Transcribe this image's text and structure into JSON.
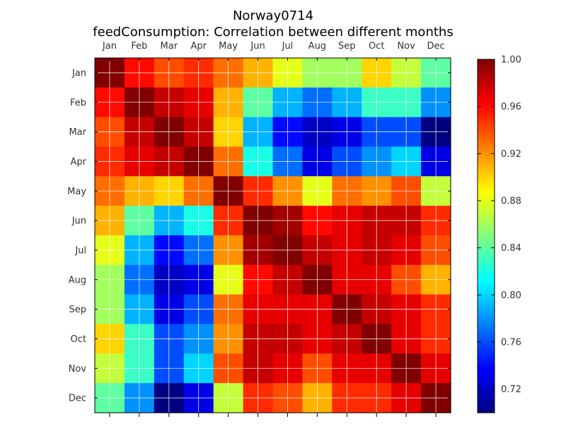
{
  "chart_data": {
    "type": "heatmap",
    "title": "Norway0714",
    "subtitle": "feedConsumption: Correlation between different months",
    "xlabel": "",
    "ylabel": "",
    "x_tick_position": "top",
    "grid": true,
    "categories": [
      "Jan",
      "Feb",
      "Mar",
      "Apr",
      "May",
      "Jun",
      "Jul",
      "Aug",
      "Sep",
      "Oct",
      "Nov",
      "Dec"
    ],
    "rows": [
      "Jan",
      "Feb",
      "Mar",
      "Apr",
      "May",
      "Jun",
      "Jul",
      "Aug",
      "Sep",
      "Oct",
      "Nov",
      "Dec"
    ],
    "values": [
      [
        1.0,
        0.96,
        0.94,
        0.95,
        0.93,
        0.91,
        0.88,
        0.86,
        0.86,
        0.9,
        0.87,
        0.84
      ],
      [
        0.96,
        1.0,
        0.98,
        0.97,
        0.91,
        0.84,
        0.79,
        0.77,
        0.79,
        0.83,
        0.83,
        0.78
      ],
      [
        0.94,
        0.98,
        1.0,
        0.98,
        0.9,
        0.79,
        0.74,
        0.72,
        0.73,
        0.76,
        0.76,
        0.7
      ],
      [
        0.95,
        0.97,
        0.98,
        1.0,
        0.93,
        0.82,
        0.77,
        0.73,
        0.76,
        0.78,
        0.8,
        0.73
      ],
      [
        0.93,
        0.91,
        0.9,
        0.93,
        1.0,
        0.95,
        0.92,
        0.88,
        0.93,
        0.92,
        0.94,
        0.87
      ],
      [
        0.91,
        0.84,
        0.79,
        0.82,
        0.95,
        1.0,
        0.99,
        0.96,
        0.97,
        0.98,
        0.98,
        0.95
      ],
      [
        0.88,
        0.79,
        0.74,
        0.77,
        0.92,
        0.99,
        1.0,
        0.98,
        0.97,
        0.98,
        0.97,
        0.94
      ],
      [
        0.86,
        0.77,
        0.72,
        0.73,
        0.88,
        0.96,
        0.98,
        1.0,
        0.97,
        0.97,
        0.94,
        0.91
      ],
      [
        0.86,
        0.79,
        0.73,
        0.76,
        0.93,
        0.97,
        0.97,
        0.97,
        1.0,
        0.98,
        0.97,
        0.95
      ],
      [
        0.9,
        0.83,
        0.76,
        0.78,
        0.92,
        0.98,
        0.98,
        0.97,
        0.98,
        1.0,
        0.97,
        0.95
      ],
      [
        0.87,
        0.83,
        0.76,
        0.8,
        0.94,
        0.98,
        0.97,
        0.94,
        0.97,
        0.97,
        1.0,
        0.97
      ],
      [
        0.84,
        0.78,
        0.7,
        0.73,
        0.87,
        0.95,
        0.94,
        0.91,
        0.95,
        0.95,
        0.97,
        1.0
      ]
    ],
    "color_range": [
      0.7,
      1.0
    ],
    "colormap": "jet",
    "colorbar": {
      "position": "right",
      "ticks": [
        "0.72",
        "0.76",
        "0.80",
        "0.84",
        "0.88",
        "0.92",
        "0.96",
        "1.00"
      ]
    }
  }
}
